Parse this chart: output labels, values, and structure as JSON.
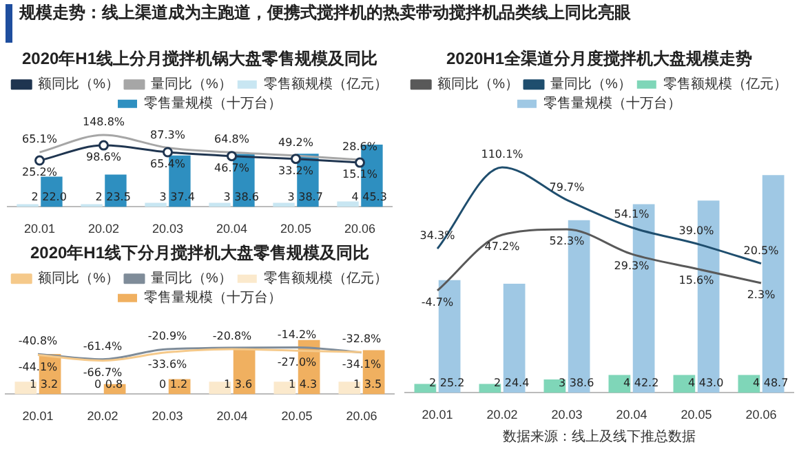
{
  "chart_data": [
    {
      "type": "bar",
      "title": "2020年H1线上分月搅拌机锅大盘零售规模及同比",
      "tick_labels": "x",
      "legend": "top",
      "annotations": [
        "规模走势：线上渠道成为主跑道，便携式搅拌机的热卖带动搅拌机品类线上同比亮眼"
      ],
      "categories": [
        "20.01",
        "20.02",
        "20.03",
        "20.04",
        "20.05",
        "20.06"
      ],
      "series": [
        {
          "name": "零售额规模（亿元）",
          "type": "bar",
          "color": "#c8e6f2",
          "values": [
            2,
            2,
            3,
            3,
            3,
            4
          ],
          "value_labels": [
            "2",
            "2",
            "3",
            "3",
            "3",
            "4"
          ]
        },
        {
          "name": "零售量规模（十万台）",
          "type": "bar",
          "color": "#2e8fc0",
          "values": [
            22.0,
            23.5,
            37.4,
            38.6,
            38.7,
            45.3
          ],
          "value_labels": [
            "22.0",
            "23.5",
            "37.4",
            "38.6",
            "38.7",
            "45.3"
          ]
        },
        {
          "name": "额同比（%）",
          "type": "line",
          "axis": "y2",
          "marker": "circle",
          "color": "#1f3550",
          "values": [
            25.2,
            98.6,
            65.4,
            46.7,
            33.2,
            15.1
          ],
          "value_labels": [
            "25.2%",
            "98.6%",
            "65.4%",
            "46.7%",
            "33.2%",
            "15.1%"
          ]
        },
        {
          "name": "量同比（%）",
          "type": "line",
          "axis": "y2",
          "color": "#a6a6a6",
          "values": [
            65.1,
            148.8,
            87.3,
            64.8,
            49.2,
            28.6
          ],
          "value_labels": [
            "65.1%",
            "148.8%",
            "87.3%",
            "64.8%",
            "49.2%",
            "28.6%"
          ]
        }
      ]
    },
    {
      "type": "bar",
      "title": "2020年H1线下分月搅拌机大盘零售规模及同比",
      "tick_labels": "x",
      "legend": "top",
      "categories": [
        "20.01",
        "20.02",
        "20.03",
        "20.04",
        "20.05",
        "20.06"
      ],
      "series": [
        {
          "name": "零售额规模（亿元）",
          "type": "bar",
          "color": "#fbe9cc",
          "values": [
            1,
            0,
            0,
            1,
            1,
            1
          ],
          "value_labels": [
            "1",
            "0",
            "0",
            "1",
            "1",
            "1"
          ]
        },
        {
          "name": "零售量规模（十万台）",
          "type": "bar",
          "color": "#f0b060",
          "values": [
            3.2,
            0.8,
            1.2,
            3.6,
            4.3,
            3.5
          ],
          "value_labels": [
            "3.2",
            "0.8",
            "1.2",
            "3.6",
            "4.3",
            "3.5"
          ]
        },
        {
          "name": "额同比（%）",
          "type": "line",
          "axis": "y2",
          "color": "#f5c98a",
          "values": [
            -44.1,
            -66.7,
            -33.6,
            -20.8,
            -27.0,
            -32.8
          ],
          "value_labels": [
            "-44.1%",
            "-66.7%",
            "-33.6%",
            "-20.8%",
            "-27.0%",
            "-32.8%"
          ]
        },
        {
          "name": "量同比（%）",
          "type": "line",
          "axis": "y2",
          "color": "#7f8c99",
          "values": [
            -40.8,
            -61.4,
            -20.9,
            null,
            -14.2,
            -34.1
          ],
          "value_labels": [
            "-40.8%",
            "-61.4%",
            "-20.9%",
            null,
            "-14.2%",
            "-34.1%"
          ]
        }
      ]
    },
    {
      "type": "bar",
      "title": "2020H1全渠道分月度搅拌机大盘规模走势",
      "tick_labels": "x",
      "legend": "top",
      "annotations": [
        "数据来源：线上及线下推总数据"
      ],
      "categories": [
        "20.01",
        "20.02",
        "20.03",
        "20.04",
        "20.05",
        "20.06"
      ],
      "series": [
        {
          "name": "零售额规模（亿元）",
          "type": "bar",
          "color": "#7fd6b8",
          "values": [
            2,
            2,
            3,
            4,
            4,
            4
          ],
          "value_labels": [
            "2",
            "2",
            "3",
            "4",
            "4",
            "4"
          ]
        },
        {
          "name": "零售量规模（十万台）",
          "type": "bar",
          "color": "#9fc8e4",
          "values": [
            25.2,
            24.4,
            38.6,
            42.2,
            43.0,
            48.7
          ],
          "value_labels": [
            "25.2",
            "24.4",
            "38.6",
            "42.2",
            "43.0",
            "48.7"
          ]
        },
        {
          "name": "额同比（%）",
          "type": "line",
          "axis": "y2",
          "color": "#595959",
          "values": [
            -4.7,
            47.2,
            52.3,
            29.3,
            15.6,
            2.3
          ],
          "value_labels": [
            "-4.7%",
            "47.2%",
            "52.3%",
            "29.3%",
            "15.6%",
            "2.3%"
          ]
        },
        {
          "name": "量同比（%）",
          "type": "line",
          "axis": "y2",
          "color": "#1f4e6e",
          "values": [
            34.3,
            110.1,
            79.7,
            54.1,
            39.0,
            20.5
          ],
          "value_labels": [
            "34.3%",
            "110.1%",
            "79.7%",
            "54.1%",
            "39.0%",
            "20.5%"
          ]
        }
      ]
    }
  ]
}
